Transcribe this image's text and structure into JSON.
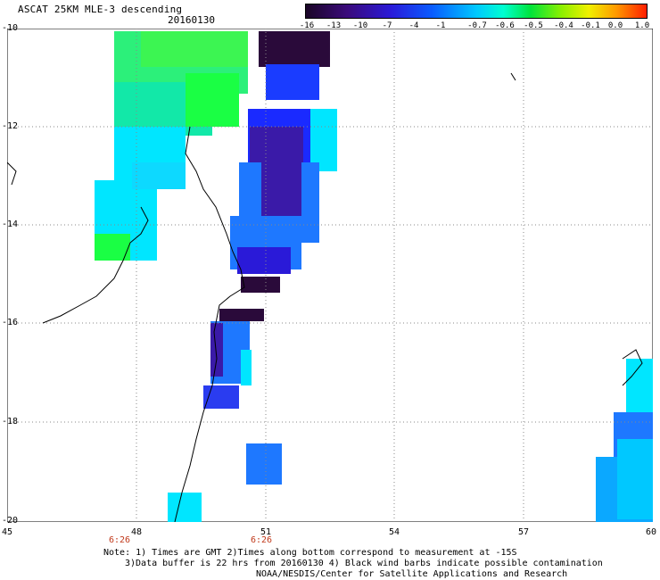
{
  "title": "ASCAT 25KM MLE-3 descending",
  "date": "20160130",
  "colorbar": {
    "ticks": [
      "-16",
      "-13",
      "-10",
      "-7",
      "-4",
      "-1",
      "-0.7",
      "-0.6",
      "-0.5",
      "-0.4",
      "-0.1",
      "0.0",
      "1.0"
    ],
    "colors": [
      "#1a0526",
      "#3a0a7a",
      "#2a1ad8",
      "#0a5cff",
      "#00c8ff",
      "#00ffd0",
      "#00e43a",
      "#8cf000",
      "#f0f000",
      "#ff9a00",
      "#ff1e00"
    ]
  },
  "axes": {
    "lat_labels": [
      "-10",
      "-12",
      "-14",
      "-16",
      "-18",
      "-20"
    ],
    "lon_labels": [
      "45",
      "48",
      "51",
      "54",
      "57",
      "60"
    ],
    "time_labels": [
      "6:26",
      "6:26"
    ]
  },
  "notes": {
    "line1": "Note: 1) Times are GMT 2)Times along bottom correspond to measurement at -15S",
    "line2": "3)Data buffer is 22 hrs from 20160130 4) Black wind barbs indicate possible contamination",
    "line3": "NOAA/NESDIS/Center for Satellite Applications and Research"
  },
  "legend_colors": {
    "very_low": "#2a0a3a",
    "low": "#3a1aa8",
    "mid_low": "#1a3cff",
    "mid": "#1e78ff",
    "cyan": "#00e6ff",
    "green": "#1aff44",
    "grid": "#888888"
  }
}
